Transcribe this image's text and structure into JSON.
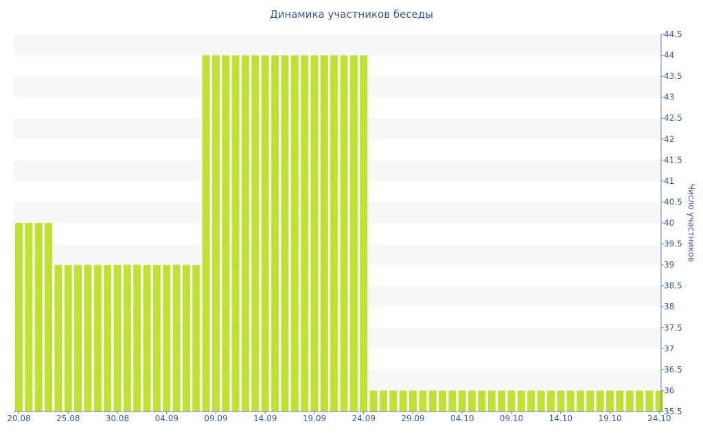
{
  "chart_data": {
    "type": "bar",
    "title": "Динамика участников беседы",
    "xlabel": "",
    "ylabel": "Число участников",
    "ylim": [
      35.5,
      44.5
    ],
    "y_ticks": [
      "35.5",
      "36",
      "36.5",
      "37",
      "37.5",
      "38",
      "38.5",
      "39",
      "39.5",
      "40",
      "40.5",
      "41",
      "41.5",
      "42",
      "42.5",
      "43",
      "43.5",
      "44",
      "44.5"
    ],
    "x_tick_labels": [
      "20.08",
      "25.08",
      "30.08",
      "04.09",
      "09.09",
      "14.09",
      "19.09",
      "24.09",
      "29.09",
      "04.10",
      "09.10",
      "14.10",
      "19.10",
      "24.10"
    ],
    "categories": [
      "20.08",
      "21.08",
      "22.08",
      "23.08",
      "24.08",
      "25.08",
      "26.08",
      "27.08",
      "28.08",
      "29.08",
      "30.08",
      "31.08",
      "01.09",
      "02.09",
      "03.09",
      "04.09",
      "05.09",
      "06.09",
      "07.09",
      "08.09",
      "09.09",
      "10.09",
      "11.09",
      "12.09",
      "13.09",
      "14.09",
      "15.09",
      "16.09",
      "17.09",
      "18.09",
      "19.09",
      "20.09",
      "21.09",
      "22.09",
      "23.09",
      "24.09",
      "25.09",
      "26.09",
      "27.09",
      "28.09",
      "29.09",
      "30.09",
      "01.10",
      "02.10",
      "03.10",
      "04.10",
      "05.10",
      "06.10",
      "07.10",
      "08.10",
      "09.10",
      "10.10",
      "11.10",
      "12.10",
      "13.10",
      "14.10",
      "15.10",
      "16.10",
      "17.10",
      "18.10",
      "19.10",
      "20.10",
      "21.10",
      "22.10",
      "23.10",
      "24.10"
    ],
    "values": [
      40,
      40,
      40,
      40,
      39,
      39,
      39,
      39,
      39,
      39,
      39,
      39,
      39,
      39,
      39,
      39,
      39,
      39,
      39,
      44,
      44,
      44,
      44,
      44,
      44,
      44,
      44,
      44,
      44,
      44,
      44,
      44,
      44,
      44,
      44,
      44,
      36,
      36,
      36,
      36,
      36,
      36,
      36,
      36,
      36,
      36,
      36,
      36,
      36,
      36,
      36,
      36,
      36,
      36,
      36,
      36,
      36,
      36,
      36,
      36,
      36,
      36,
      36,
      36,
      36,
      36
    ],
    "bar_color": "#bde231",
    "band_color": "#f7f7f7",
    "text_color": "#3b5998",
    "grid": "alternating bands",
    "y_axis_position": "right"
  }
}
